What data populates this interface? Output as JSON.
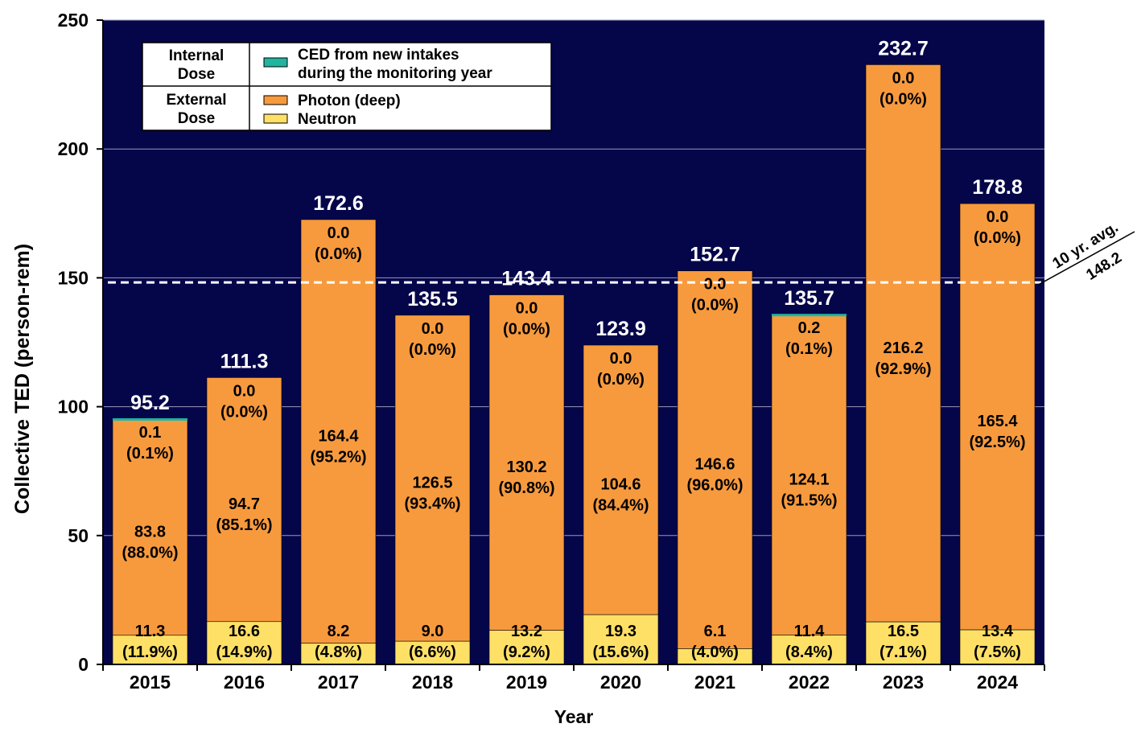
{
  "chart_data": {
    "type": "bar",
    "stacked": true,
    "title": "",
    "xlabel": "Year",
    "ylabel": "Collective TED (person-rem)",
    "ylim": [
      0,
      250
    ],
    "yticks": [
      0,
      50,
      100,
      150,
      200,
      250
    ],
    "grid": true,
    "categories": [
      "2015",
      "2016",
      "2017",
      "2018",
      "2019",
      "2020",
      "2021",
      "2022",
      "2023",
      "2024"
    ],
    "totals": [
      95.2,
      111.3,
      172.6,
      135.5,
      143.4,
      123.9,
      152.7,
      135.7,
      232.7,
      178.8
    ],
    "total_labels": [
      "95.2",
      "111.3",
      "172.6",
      "135.5",
      "143.4",
      "123.9",
      "152.7",
      "135.7",
      "232.7",
      "178.8"
    ],
    "series": [
      {
        "name": "Neutron",
        "color": "#FFE066",
        "values": [
          11.3,
          16.6,
          8.2,
          9.0,
          13.2,
          19.3,
          6.1,
          11.4,
          16.5,
          13.4
        ],
        "labels": [
          "11.3",
          "16.6",
          "8.2",
          "9.0",
          "13.2",
          "19.3",
          "6.1",
          "11.4",
          "16.5",
          "13.4"
        ],
        "pct": [
          "(11.9%)",
          "(14.9%)",
          "(4.8%)",
          "(6.6%)",
          "(9.2%)",
          "(15.6%)",
          "(4.0%)",
          "(8.4%)",
          "(7.1%)",
          "(7.5%)"
        ]
      },
      {
        "name": "Photon (deep)",
        "color": "#F79A3E",
        "values": [
          83.8,
          94.7,
          164.4,
          126.5,
          130.2,
          104.6,
          146.6,
          124.1,
          216.2,
          165.4
        ],
        "labels": [
          "83.8",
          "94.7",
          "164.4",
          "126.5",
          "130.2",
          "104.6",
          "146.6",
          "124.1",
          "216.2",
          "165.4"
        ],
        "pct": [
          "(88.0%)",
          "(85.1%)",
          "(95.2%)",
          "(93.4%)",
          "(90.8%)",
          "(84.4%)",
          "(96.0%)",
          "(91.5%)",
          "(92.9%)",
          "(92.5%)"
        ]
      },
      {
        "name": "CED from new intakes during the monitoring year",
        "color": "#1FB5A0",
        "values": [
          0.1,
          0.0,
          0.0,
          0.0,
          0.0,
          0.0,
          0.0,
          0.2,
          0.0,
          0.0
        ],
        "labels": [
          "0.1",
          "0.0",
          "0.0",
          "0.0",
          "0.0",
          "0.0",
          "0.0",
          "0.2",
          "0.0",
          "0.0"
        ],
        "pct": [
          "(0.1%)",
          "(0.0%)",
          "(0.0%)",
          "(0.0%)",
          "(0.0%)",
          "(0.0%)",
          "(0.0%)",
          "(0.1%)",
          "(0.0%)",
          "(0.0%)"
        ]
      }
    ],
    "reference_line": {
      "value": 148.2,
      "label_top": "10 yr. avg.",
      "label_bottom": "148.2"
    },
    "legend": {
      "placement": "top-left",
      "groups": [
        {
          "group_label": [
            "Internal",
            "Dose"
          ],
          "entries": [
            {
              "label_lines": [
                "CED from new intakes",
                "during the monitoring year"
              ],
              "color": "#1FB5A0"
            }
          ]
        },
        {
          "group_label": [
            "External",
            "Dose"
          ],
          "entries": [
            {
              "label_lines": [
                "Photon (deep)"
              ],
              "color": "#F79A3E"
            },
            {
              "label_lines": [
                "Neutron"
              ],
              "color": "#FFE066"
            }
          ]
        }
      ]
    },
    "colors": {
      "plot_background": "#05054A",
      "gridline": "#9a9ab8",
      "avg_line": "#ffffff"
    }
  }
}
